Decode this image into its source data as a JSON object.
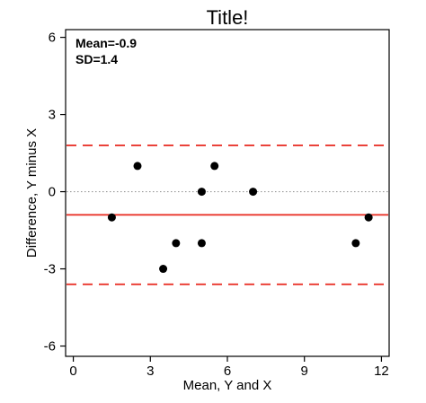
{
  "chart_data": {
    "type": "scatter",
    "title": "Title!",
    "xlabel": "Mean, Y and X",
    "ylabel": "Difference, Y minus X",
    "xlim": [
      -0.3,
      12.3
    ],
    "ylim": [
      -6.4,
      6.3
    ],
    "x_ticks": [
      0,
      3,
      6,
      9,
      12
    ],
    "y_ticks": [
      -6,
      -3,
      0,
      3,
      6
    ],
    "x_tick_labels": [
      "0",
      "3",
      "6",
      "9",
      "12"
    ],
    "y_tick_labels": [
      "-6",
      "-3",
      "0",
      "3",
      "6"
    ],
    "points": [
      {
        "x": 1.5,
        "y": -1
      },
      {
        "x": 2.5,
        "y": 1
      },
      {
        "x": 3.5,
        "y": -3
      },
      {
        "x": 4.0,
        "y": -2
      },
      {
        "x": 5.0,
        "y": 0
      },
      {
        "x": 5.0,
        "y": -2
      },
      {
        "x": 5.5,
        "y": 1
      },
      {
        "x": 7.0,
        "y": 0
      },
      {
        "x": 11.0,
        "y": -2
      },
      {
        "x": 11.5,
        "y": -1
      }
    ],
    "mean_line": -0.9,
    "limits_of_agreement": [
      1.8,
      -3.6
    ],
    "zero_line": 0,
    "annotations": [
      "Mean=-0.9",
      "SD=1.4"
    ],
    "grid": false,
    "colors": {
      "points": "#000000",
      "mean_line": "#e8281e",
      "limit_lines": "#e8281e",
      "zero_line": "#9a9a9a",
      "axes": "#000000"
    }
  }
}
